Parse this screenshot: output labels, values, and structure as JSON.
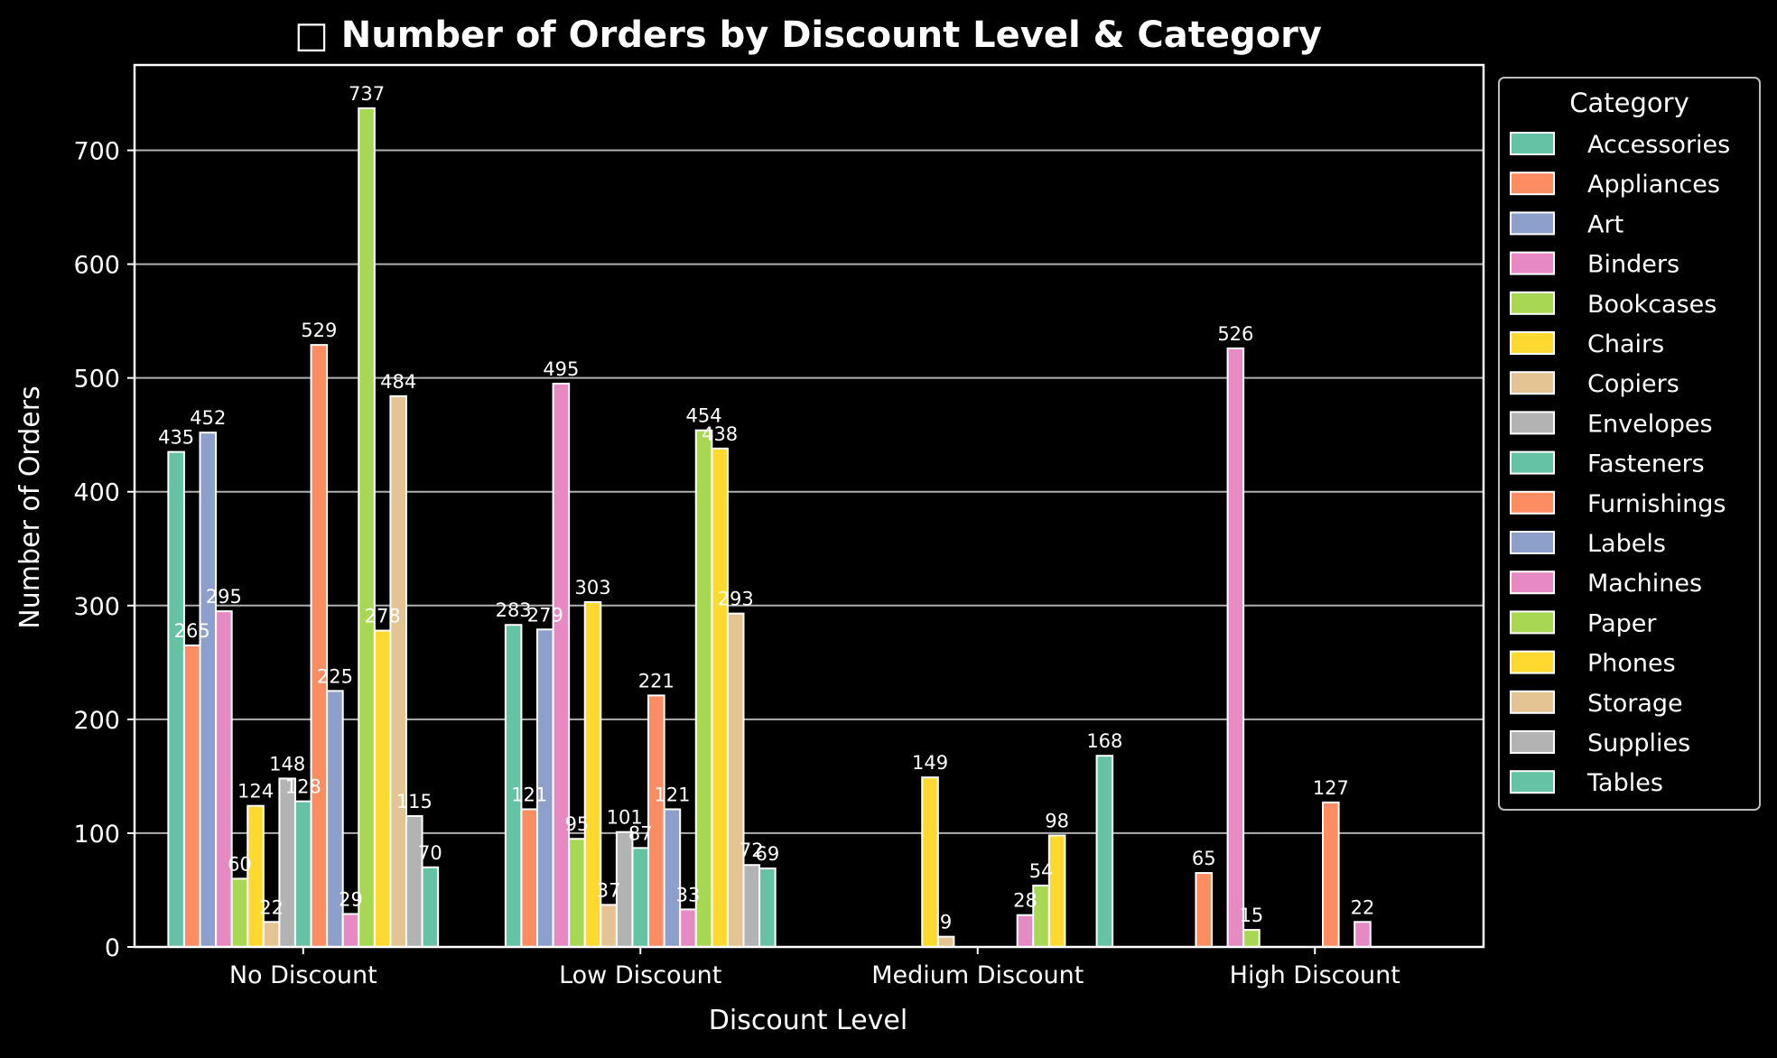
{
  "chart_data": {
    "type": "bar",
    "title": "□ Number of Orders by Discount Level & Category",
    "xlabel": "Discount Level",
    "ylabel": "Number of Orders",
    "ylim": [
      0,
      775
    ],
    "yticks": [
      0,
      100,
      200,
      300,
      400,
      500,
      600,
      700
    ],
    "grid": "horizontal",
    "legend_title": "Category",
    "legend_position": "outside right",
    "categories": [
      "No Discount",
      "Low Discount",
      "Medium Discount",
      "High Discount"
    ],
    "series": [
      {
        "name": "Accessories",
        "color": "#66c2a5",
        "values": [
          435,
          283,
          null,
          null
        ]
      },
      {
        "name": "Appliances",
        "color": "#fc8d62",
        "values": [
          265,
          121,
          null,
          65
        ]
      },
      {
        "name": "Art",
        "color": "#8da0cb",
        "values": [
          452,
          279,
          null,
          null
        ]
      },
      {
        "name": "Binders",
        "color": "#e78ac3",
        "values": [
          295,
          495,
          null,
          526
        ]
      },
      {
        "name": "Bookcases",
        "color": "#a6d854",
        "values": [
          60,
          95,
          null,
          15
        ]
      },
      {
        "name": "Chairs",
        "color": "#ffd92f",
        "values": [
          124,
          303,
          149,
          null
        ]
      },
      {
        "name": "Copiers",
        "color": "#e5c494",
        "values": [
          22,
          37,
          9,
          null
        ]
      },
      {
        "name": "Envelopes",
        "color": "#b3b3b3",
        "values": [
          148,
          101,
          null,
          null
        ]
      },
      {
        "name": "Fasteners",
        "color": "#66c2a5",
        "values": [
          128,
          87,
          null,
          null
        ]
      },
      {
        "name": "Furnishings",
        "color": "#fc8d62",
        "values": [
          529,
          221,
          null,
          127
        ]
      },
      {
        "name": "Labels",
        "color": "#8da0cb",
        "values": [
          225,
          121,
          null,
          null
        ]
      },
      {
        "name": "Machines",
        "color": "#e78ac3",
        "values": [
          29,
          33,
          28,
          22
        ]
      },
      {
        "name": "Paper",
        "color": "#a6d854",
        "values": [
          737,
          454,
          54,
          null
        ]
      },
      {
        "name": "Phones",
        "color": "#ffd92f",
        "values": [
          278,
          438,
          98,
          null
        ]
      },
      {
        "name": "Storage",
        "color": "#e5c494",
        "values": [
          484,
          293,
          null,
          null
        ]
      },
      {
        "name": "Supplies",
        "color": "#b3b3b3",
        "values": [
          115,
          72,
          null,
          null
        ]
      },
      {
        "name": "Tables",
        "color": "#66c2a5",
        "values": [
          70,
          69,
          168,
          null
        ]
      }
    ]
  }
}
